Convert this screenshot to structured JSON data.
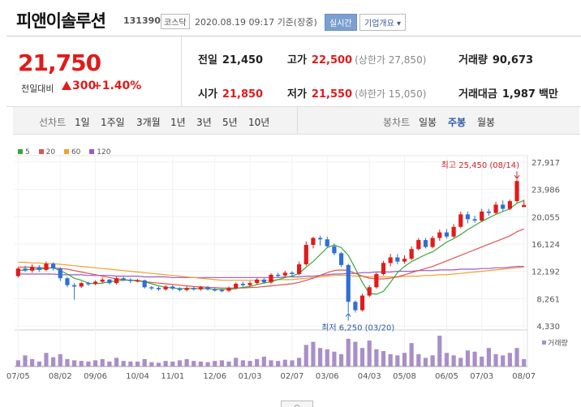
{
  "header": {
    "name": "피앤이솔루션",
    "code": "131390",
    "market": "코스닥",
    "timestamp": "2020.08.19 09:17 기준(장중)",
    "realtime_label": "실시간",
    "company_label": "기업개요 ▾"
  },
  "summary": {
    "price": "21,750",
    "change_label": "전일대비",
    "change": "300",
    "change_pct": "+1.40%",
    "prev_close_label": "전일",
    "prev_close": "21,450",
    "high_label": "고가",
    "high": "22,500",
    "upper_limit": "(상한가 27,850)",
    "volume_label": "거래량",
    "volume": "90,673",
    "open_label": "시가",
    "open": "21,850",
    "low_label": "저가",
    "low": "21,550",
    "lower_limit": "(하한가 15,050)",
    "amount_label": "거래대금",
    "amount": "1,987",
    "amount_unit": "백만"
  },
  "period_bar": {
    "line_label": "선차트",
    "line_periods": [
      "1일",
      "1주일",
      "3개월",
      "1년",
      "3년",
      "5년",
      "10년"
    ],
    "candle_label": "봉차트",
    "candle_periods": [
      "일봉",
      "주봉",
      "월봉"
    ],
    "active_candle": "주봉"
  },
  "colors": {
    "up": "#e01b1b",
    "down": "#2f6fd6",
    "ma5": "#3aa63a",
    "ma20": "#e05353",
    "ma60": "#f0a030",
    "ma120": "#9b59c4",
    "volume": "#a98fc8"
  },
  "chart_data": {
    "type": "candlestick",
    "legend": [
      "5",
      "20",
      "60",
      "120"
    ],
    "y_ticks": [
      "27,917",
      "23,986",
      "20,055",
      "16,124",
      "12,192",
      "8,261",
      "4,330"
    ],
    "ylim": [
      4330,
      27917
    ],
    "x_ticks": [
      "07/05",
      "08/02",
      "09/06",
      "10/04",
      "11/01",
      "12/06",
      "01/03",
      "02/07",
      "03/06",
      "04/03",
      "05/08",
      "06/05",
      "07/03",
      "08/07"
    ],
    "high_annotation": "최고 25,450 (08/14)",
    "low_annotation": "최저 6,250 (03/20)",
    "volume_label": "거래량",
    "candles": [
      [
        11500,
        12600,
        11300,
        12800
      ],
      [
        12600,
        12300,
        12100,
        13000
      ],
      [
        12300,
        12800,
        12000,
        13200
      ],
      [
        12800,
        12400,
        12100,
        13100
      ],
      [
        12400,
        13300,
        12200,
        13600
      ],
      [
        13300,
        12600,
        12300,
        13500
      ],
      [
        12600,
        11200,
        10800,
        12800
      ],
      [
        11200,
        10200,
        9900,
        11400
      ],
      [
        10200,
        10000,
        8100,
        10500
      ],
      [
        10000,
        10500,
        9800,
        10700
      ],
      [
        10500,
        10400,
        10100,
        10700
      ],
      [
        10400,
        10700,
        10200,
        10900
      ],
      [
        10700,
        11000,
        10500,
        11300
      ],
      [
        11000,
        10500,
        10300,
        11100
      ],
      [
        10500,
        11200,
        10300,
        11400
      ],
      [
        11200,
        11000,
        10800,
        11400
      ],
      [
        11000,
        10800,
        10500,
        11200
      ],
      [
        10800,
        10900,
        10600,
        11100
      ],
      [
        10900,
        9900,
        9700,
        11000
      ],
      [
        9900,
        9800,
        9500,
        10100
      ],
      [
        9800,
        9600,
        9400,
        10000
      ],
      [
        9600,
        10000,
        9400,
        10200
      ],
      [
        10000,
        9700,
        9500,
        10200
      ],
      [
        9700,
        9500,
        9300,
        9900
      ],
      [
        9500,
        9800,
        9300,
        10000
      ],
      [
        9800,
        9600,
        9400,
        10000
      ],
      [
        9600,
        9900,
        9400,
        10100
      ],
      [
        9900,
        9600,
        9400,
        10100
      ],
      [
        9600,
        9500,
        9300,
        9800
      ],
      [
        9500,
        9400,
        9200,
        9700
      ],
      [
        9400,
        9800,
        9200,
        10000
      ],
      [
        9800,
        10400,
        9600,
        10600
      ],
      [
        10400,
        10200,
        10000,
        10700
      ],
      [
        10200,
        10500,
        10000,
        10800
      ],
      [
        10500,
        11000,
        10300,
        11200
      ],
      [
        11000,
        10600,
        10400,
        11200
      ],
      [
        10600,
        11700,
        10400,
        11900
      ],
      [
        11700,
        11600,
        11300,
        12000
      ],
      [
        11600,
        12000,
        11400,
        12300
      ],
      [
        12000,
        11800,
        11500,
        12200
      ],
      [
        11800,
        13200,
        11600,
        13600
      ],
      [
        13200,
        16000,
        13000,
        16500
      ],
      [
        16000,
        17000,
        15500,
        17200
      ],
      [
        17000,
        16800,
        15900,
        17300
      ],
      [
        16800,
        15800,
        15600,
        17200
      ],
      [
        15800,
        14800,
        14500,
        16200
      ],
      [
        14800,
        13100,
        12800,
        15000
      ],
      [
        13100,
        7800,
        6250,
        13300
      ],
      [
        7800,
        6600,
        6250,
        8000
      ],
      [
        6600,
        8700,
        6400,
        9000
      ],
      [
        8700,
        9900,
        8500,
        10200
      ],
      [
        9900,
        11800,
        9700,
        12000
      ],
      [
        11800,
        13400,
        11600,
        13700
      ],
      [
        13400,
        14200,
        12900,
        14700
      ],
      [
        14200,
        13600,
        13200,
        14700
      ],
      [
        13600,
        14000,
        13300,
        14500
      ],
      [
        14000,
        15400,
        13800,
        15800
      ],
      [
        15400,
        16700,
        15200,
        17000
      ],
      [
        16700,
        15700,
        15500,
        17000
      ],
      [
        15700,
        17000,
        15500,
        17300
      ],
      [
        17000,
        17800,
        16600,
        18200
      ],
      [
        17800,
        17200,
        16900,
        18300
      ],
      [
        17200,
        18600,
        17000,
        19000
      ],
      [
        18600,
        20400,
        18400,
        20800
      ],
      [
        20400,
        19700,
        19100,
        20800
      ],
      [
        19700,
        19500,
        19200,
        20200
      ],
      [
        19500,
        20800,
        19300,
        21200
      ],
      [
        20800,
        20600,
        20200,
        21200
      ],
      [
        20600,
        21800,
        20400,
        22200
      ],
      [
        21800,
        21200,
        20800,
        22400
      ],
      [
        21200,
        22300,
        21000,
        22500
      ],
      [
        22300,
        25200,
        22100,
        25450
      ],
      [
        21450,
        21750,
        21550,
        22500
      ]
    ],
    "ma5": [
      12300,
      12400,
      12500,
      12500,
      12600,
      12700,
      12300,
      11800,
      11200,
      10900,
      10500,
      10400,
      10500,
      10700,
      10800,
      10900,
      10900,
      10900,
      10700,
      10400,
      10100,
      9900,
      9800,
      9700,
      9700,
      9700,
      9700,
      9700,
      9600,
      9600,
      9600,
      9700,
      9900,
      10000,
      10300,
      10500,
      10700,
      11000,
      11300,
      11500,
      11900,
      12800,
      13600,
      14600,
      15600,
      16000,
      15600,
      14500,
      12600,
      10600,
      9000,
      8900,
      9300,
      10600,
      12000,
      12900,
      13600,
      14100,
      14600,
      15000,
      15700,
      16400,
      16900,
      17500,
      18200,
      18800,
      19400,
      19900,
      20400,
      20800,
      21200,
      22000,
      22400
    ],
    "ma20": [
      12800,
      12800,
      12800,
      12700,
      12700,
      12700,
      12600,
      12500,
      12300,
      12100,
      11900,
      11700,
      11500,
      11300,
      11100,
      11000,
      10900,
      10800,
      10700,
      10600,
      10500,
      10400,
      10300,
      10200,
      10100,
      10000,
      9950,
      9900,
      9850,
      9800,
      9800,
      9800,
      9800,
      9850,
      9900,
      10000,
      10100,
      10200,
      10300,
      10400,
      10600,
      10900,
      11200,
      11600,
      12000,
      12300,
      12400,
      12300,
      11900,
      11500,
      11200,
      11100,
      11100,
      11200,
      11400,
      11700,
      12000,
      12300,
      12600,
      12900,
      13300,
      13700,
      14100,
      14500,
      14900,
      15300,
      15700,
      16100,
      16500,
      16900,
      17300,
      17900,
      18300
    ],
    "ma60": [
      13500,
      13500,
      13400,
      13400,
      13300,
      13300,
      13200,
      13100,
      13000,
      12900,
      12800,
      12700,
      12600,
      12500,
      12400,
      12300,
      12200,
      12100,
      12000,
      11900,
      11800,
      11700,
      11600,
      11500,
      11400,
      11300,
      11200,
      11100,
      11000,
      10900,
      10900,
      10900,
      10900,
      10900,
      10900,
      10900,
      10900,
      11000,
      11000,
      11000,
      11100,
      11200,
      11300,
      11400,
      11500,
      11600,
      11600,
      11600,
      11500,
      11500,
      11400,
      11400,
      11400,
      11400,
      11400,
      11500,
      11500,
      11500,
      11600,
      11600,
      11700,
      11700,
      11800,
      11900,
      12000,
      12100,
      12200,
      12300,
      12400,
      12500,
      12600,
      12700,
      12800
    ],
    "ma120": [
      11800,
      11800,
      11800,
      11800,
      11800,
      11800,
      11700,
      11700,
      11700,
      11700,
      11600,
      11600,
      11600,
      11600,
      11500,
      11500,
      11500,
      11500,
      11400,
      11400,
      11400,
      11400,
      11300,
      11300,
      11300,
      11300,
      11300,
      11300,
      11300,
      11300,
      11300,
      11300,
      11300,
      11300,
      11300,
      11300,
      11300,
      11300,
      11400,
      11400,
      11400,
      11500,
      11500,
      11600,
      11700,
      11800,
      11800,
      11900,
      11900,
      12000,
      12000,
      12100,
      12100,
      12100,
      12200,
      12200,
      12200,
      12300,
      12300,
      12300,
      12400,
      12400,
      12400,
      12500,
      12500,
      12500,
      12600,
      12600,
      12700,
      12700,
      12800,
      12900,
      12900
    ],
    "volume": [
      10,
      18,
      12,
      8,
      22,
      15,
      20,
      12,
      10,
      9,
      8,
      10,
      12,
      8,
      14,
      9,
      8,
      8,
      12,
      7,
      6,
      9,
      8,
      10,
      12,
      9,
      8,
      7,
      9,
      10,
      8,
      14,
      10,
      9,
      12,
      16,
      10,
      9,
      11,
      10,
      14,
      35,
      40,
      30,
      28,
      24,
      20,
      45,
      40,
      30,
      42,
      28,
      25,
      20,
      18,
      22,
      38,
      20,
      14,
      18,
      50,
      22,
      18,
      14,
      26,
      24,
      16,
      30,
      20,
      18,
      22,
      30,
      12
    ]
  }
}
